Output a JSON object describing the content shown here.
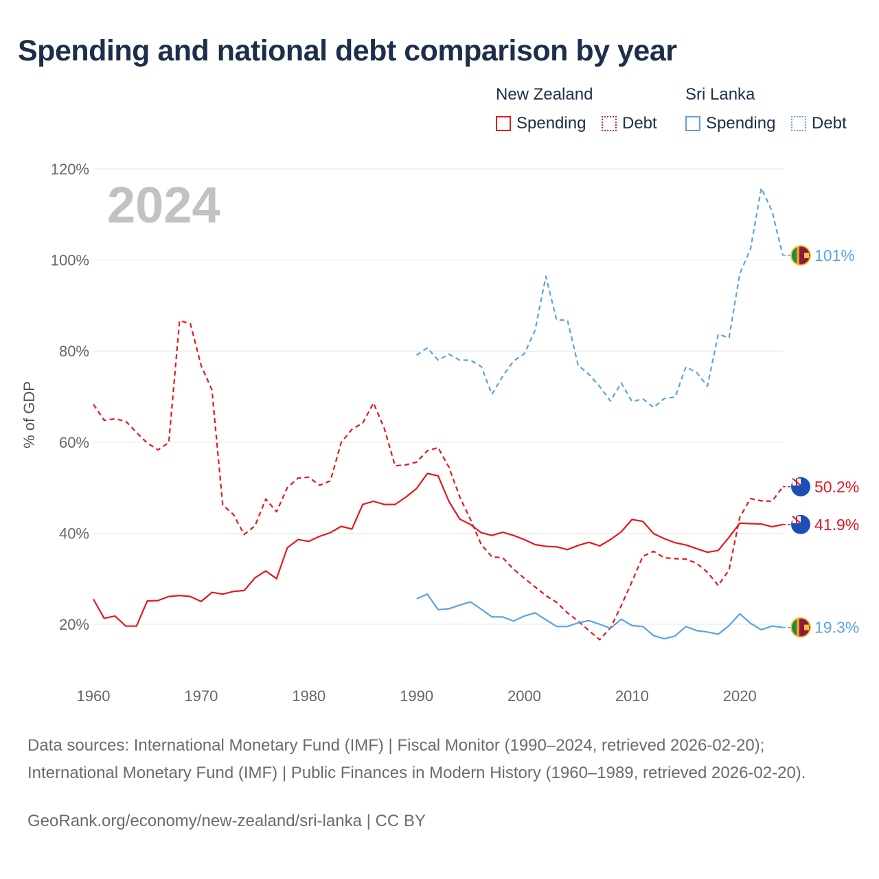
{
  "title": "Spending and national debt comparison by year",
  "legend": {
    "groups": [
      {
        "name": "New Zealand",
        "items": [
          "Spending",
          "Debt"
        ],
        "color": "#e8161b"
      },
      {
        "name": "Sri Lanka",
        "items": [
          "Spending",
          "Debt"
        ],
        "color": "#5aa3e0"
      }
    ]
  },
  "footer": {
    "sources": "Data sources: International Monetary Fund (IMF) | Fiscal Monitor (1990–2024, retrieved 2026-02-20); International Monetary Fund (IMF) | Public Finances in Modern History (1960–1989, retrieved 2026-02-20).",
    "credit": "GeoRank.org/economy/new-zealand/sri-lanka | CC BY"
  },
  "chart_data": {
    "type": "line",
    "year_label": "2024",
    "ylabel": "% of GDP",
    "xlim": [
      1960,
      2024
    ],
    "ylim": [
      10,
      120
    ],
    "x_ticks": [
      1960,
      1970,
      1980,
      1990,
      2000,
      2010,
      2020
    ],
    "y_ticks": [
      20,
      40,
      60,
      80,
      100,
      120
    ],
    "y_tick_labels": [
      "20%",
      "40%",
      "60%",
      "80%",
      "100%",
      "120%"
    ],
    "series": [
      {
        "name": "New Zealand Spending",
        "country": "New Zealand",
        "style": "solid",
        "color": "#e8161b",
        "start_year": 1960,
        "values": [
          25.5,
          21.3,
          21.8,
          19.6,
          19.6,
          25.1,
          25.2,
          26.1,
          26.3,
          26.1,
          25.0,
          27.0,
          26.6,
          27.2,
          27.4,
          30.2,
          31.7,
          30.0,
          36.8,
          38.6,
          38.2,
          39.3,
          40.1,
          41.5,
          40.9,
          46.3,
          47.0,
          46.3,
          46.3,
          47.9,
          49.8,
          53.1,
          52.6,
          47.0,
          43.1,
          41.9,
          40.1,
          39.5,
          40.2,
          39.5,
          38.6,
          37.5,
          37.1,
          37.0,
          36.4,
          37.3,
          38.0,
          37.2,
          38.6,
          40.3,
          43.0,
          42.6,
          39.9,
          38.8,
          37.9,
          37.4,
          36.6,
          35.8,
          36.2,
          39.1,
          42.2,
          42.1,
          42.0,
          41.4,
          41.9
        ],
        "end_label": "41.9%"
      },
      {
        "name": "New Zealand Debt",
        "country": "New Zealand",
        "style": "dashed",
        "color": "#e8161b",
        "start_year": 1960,
        "values": [
          68.3,
          64.8,
          65.1,
          64.6,
          62.1,
          59.8,
          58.3,
          59.9,
          86.7,
          86.0,
          76.8,
          71.5,
          46.2,
          44.1,
          39.7,
          41.6,
          47.5,
          44.7,
          50.0,
          52.1,
          52.3,
          50.5,
          51.5,
          59.9,
          62.8,
          64.2,
          68.6,
          63.0,
          54.8,
          55.0,
          55.6,
          58.1,
          58.8,
          54.5,
          48.0,
          43.0,
          37.5,
          34.8,
          34.6,
          32.1,
          30.1,
          28.2,
          26.3,
          24.8,
          22.5,
          20.7,
          18.6,
          16.6,
          19.2,
          24.1,
          29.4,
          34.9,
          36.0,
          34.6,
          34.4,
          34.3,
          33.4,
          31.4,
          28.5,
          31.9,
          43.5,
          47.6,
          47.1,
          47.0,
          50.2
        ],
        "end_label": "50.2%"
      },
      {
        "name": "Sri Lanka Spending",
        "country": "Sri Lanka",
        "style": "solid",
        "color": "#5aa3e0",
        "start_year": 1990,
        "values": [
          25.6,
          26.6,
          23.2,
          23.4,
          24.2,
          24.9,
          23.3,
          21.6,
          21.6,
          20.7,
          21.8,
          22.5,
          21.0,
          19.5,
          19.5,
          20.3,
          20.8,
          20.0,
          19.1,
          21.1,
          19.7,
          19.5,
          17.5,
          16.8,
          17.4,
          19.5,
          18.6,
          18.3,
          17.8,
          19.7,
          22.3,
          20.2,
          18.8,
          19.6,
          19.3
        ],
        "end_label": "19.3%"
      },
      {
        "name": "Sri Lanka Debt",
        "country": "Sri Lanka",
        "style": "dashed",
        "color": "#5aa3e0",
        "start_year": 1990,
        "values": [
          79.1,
          80.7,
          78.0,
          79.3,
          78.0,
          78.0,
          76.6,
          70.5,
          74.5,
          77.8,
          79.4,
          84.6,
          96.4,
          86.8,
          86.8,
          76.9,
          74.9,
          72.2,
          69.0,
          73.0,
          68.9,
          69.5,
          67.6,
          69.6,
          69.9,
          76.5,
          75.3,
          72.3,
          83.7,
          82.9,
          97.0,
          102.4,
          115.8,
          110.7,
          101.0
        ],
        "end_label": "101%"
      }
    ]
  }
}
